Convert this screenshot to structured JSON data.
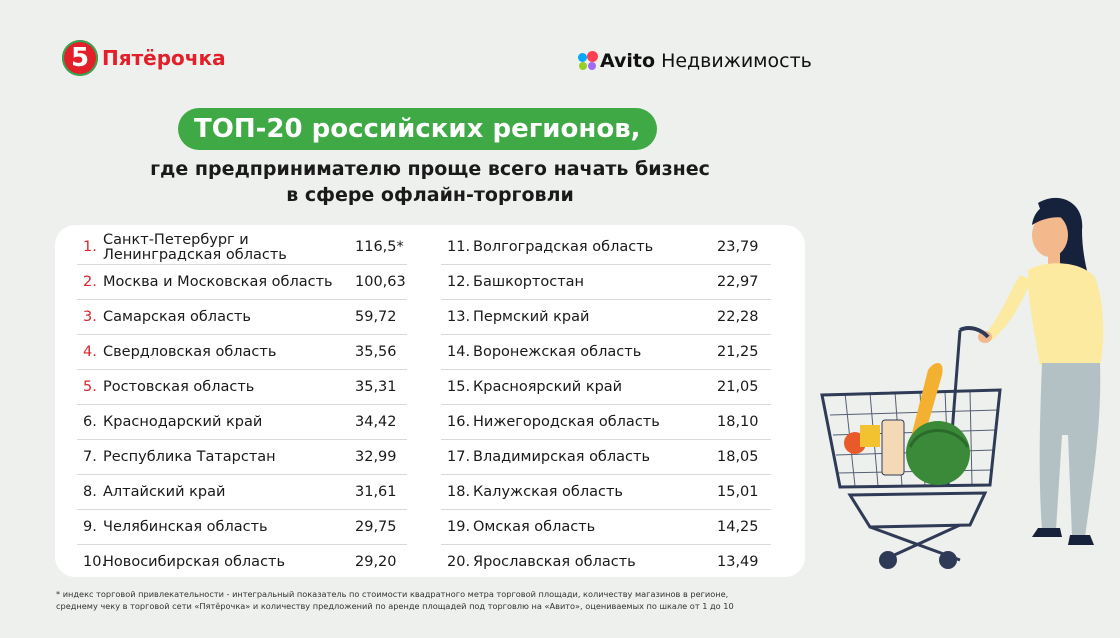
{
  "brand_left": {
    "logo_glyph": "5",
    "name": "Пятёрочка",
    "color": "#e3202a"
  },
  "brand_right": {
    "brand": "Avito",
    "name": "Недвижимость",
    "icon": "avito-dots-icon"
  },
  "title": {
    "pill": "ТОП-20 российских регионов,",
    "line2": "где предпринимателю проще всего начать бизнес",
    "line3": "в сфере офлайн-торговли"
  },
  "ranking_left": [
    {
      "num": "1.",
      "region_l1": "Санкт-Петербург и",
      "region_l2": "Ленинградская область",
      "value": "116,5*"
    },
    {
      "num": "2.",
      "region": "Москва и Московская область",
      "value": "100,63"
    },
    {
      "num": "3.",
      "region": "Самарская область",
      "value": "59,72"
    },
    {
      "num": "4.",
      "region": "Свердловская область",
      "value": "35,56"
    },
    {
      "num": "5.",
      "region": "Ростовская область",
      "value": "35,31"
    },
    {
      "num": "6.",
      "region": "Краснодарский край",
      "value": "34,42"
    },
    {
      "num": "7.",
      "region": "Республика Татарстан",
      "value": "32,99"
    },
    {
      "num": "8.",
      "region": "Алтайский край",
      "value": "31,61"
    },
    {
      "num": "9.",
      "region": "Челябинская область",
      "value": "29,75"
    },
    {
      "num": "10.",
      "region": "Новосибирская область",
      "value": "29,20"
    }
  ],
  "ranking_right": [
    {
      "num": "11.",
      "region": "Волгоградская область",
      "value": "23,79"
    },
    {
      "num": "12.",
      "region": "Башкортостан",
      "value": "22,97"
    },
    {
      "num": "13.",
      "region": "Пермский край",
      "value": "22,28"
    },
    {
      "num": "14.",
      "region": "Воронежская область",
      "value": "21,25"
    },
    {
      "num": "15.",
      "region": "Красноярский край",
      "value": "21,05"
    },
    {
      "num": "16.",
      "region": "Нижегородская область",
      "value": "18,10"
    },
    {
      "num": "17.",
      "region": "Владимирская область",
      "value": "18,05"
    },
    {
      "num": "18.",
      "region": "Калужская область",
      "value": "15,01"
    },
    {
      "num": "19.",
      "region": "Омская область",
      "value": "14,25"
    },
    {
      "num": "20.",
      "region": "Ярославская область",
      "value": "13,49"
    }
  ],
  "top_color": "#d8242c",
  "footnote": {
    "line1": "* индекс торговой привлекательности - интегральный показатель по стоимости квадратного метра торговой площади, количеству магазинов в регионе,",
    "line2": "среднему чеку в торговой сети «Пятёрочка» и количеству предложений по аренде площадей под торговлю на «Авито», оцениваемых по шкале от 1 до 10"
  },
  "illustration": "woman-with-shopping-cart-illustration"
}
